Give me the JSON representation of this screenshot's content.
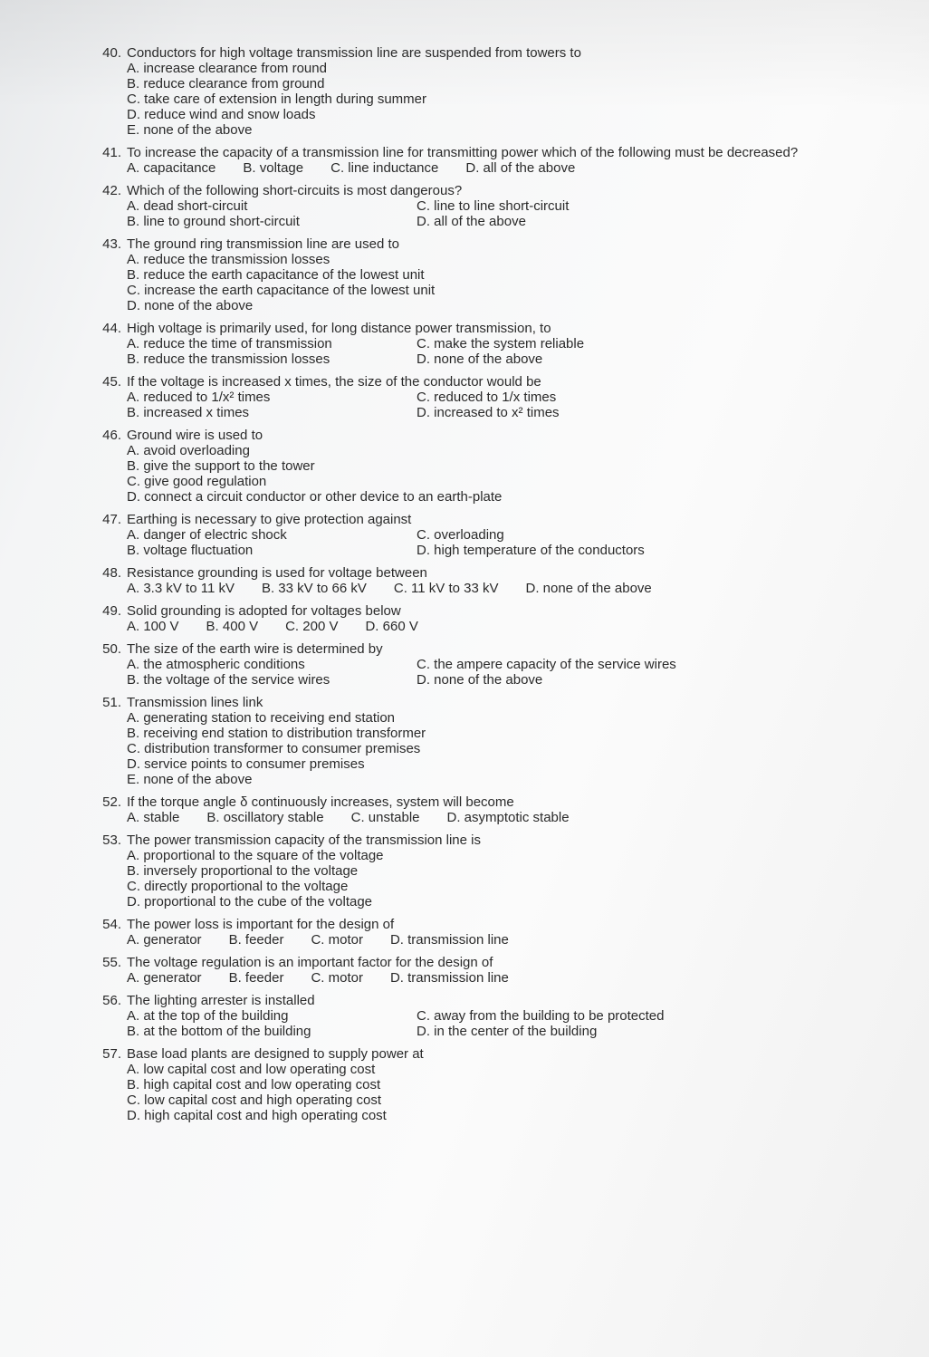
{
  "questions": [
    {
      "num": "40.",
      "stem": "Conductors for high voltage transmission line are suspended from towers to",
      "opts": [
        "A. increase clearance from round",
        "B. reduce clearance from ground",
        "C. take care of extension in length during summer",
        "D. reduce wind and snow loads",
        "E. none of the above"
      ],
      "layout": "block"
    },
    {
      "num": "41.",
      "stem": "To increase the capacity of a transmission line for transmitting power which of the following must be decreased?",
      "opts": [
        "A. capacitance",
        "B. voltage",
        "C. line inductance",
        "D. all of the above"
      ],
      "layout": "inline"
    },
    {
      "num": "42.",
      "stem": "Which of the following short-circuits is most dangerous?",
      "opts": [
        "A. dead short-circuit",
        "C. line to line short-circuit",
        "B. line to ground short-circuit",
        "D. all of the above"
      ],
      "layout": "two-col"
    },
    {
      "num": "43.",
      "stem": "The ground ring transmission line are used to",
      "opts": [
        "A. reduce the transmission losses",
        "B. reduce the earth capacitance of the lowest unit",
        "C. increase the earth capacitance of the lowest unit",
        "D. none of the above"
      ],
      "layout": "block"
    },
    {
      "num": "44.",
      "stem": "High voltage is primarily used, for long distance power transmission, to",
      "opts": [
        "A. reduce the time of transmission",
        "C. make the system reliable",
        "B. reduce the transmission losses",
        "D. none of the above"
      ],
      "layout": "two-col"
    },
    {
      "num": "45.",
      "stem": "If the voltage is increased x times, the size of the conductor would be",
      "opts": [
        "A. reduced to 1/x² times",
        "C. reduced to 1/x times",
        "B. increased x times",
        "D. increased to x² times"
      ],
      "layout": "two-col"
    },
    {
      "num": "46.",
      "stem": "Ground wire is used to",
      "opts": [
        "A. avoid overloading",
        "B. give the support to the tower",
        "C. give good regulation",
        "D. connect a circuit conductor or other device to an earth-plate"
      ],
      "layout": "block"
    },
    {
      "num": "47.",
      "stem": "Earthing is necessary to give protection against",
      "opts": [
        "A. danger of electric shock",
        "C. overloading",
        "B. voltage fluctuation",
        "D. high temperature of the conductors"
      ],
      "layout": "two-col"
    },
    {
      "num": "48.",
      "stem": "Resistance grounding is used for voltage between",
      "opts": [
        "A. 3.3 kV to 11 kV",
        "B. 33 kV to 66 kV",
        "C. 11 kV to 33 kV",
        "D. none of the above"
      ],
      "layout": "inline"
    },
    {
      "num": "49.",
      "stem": "Solid grounding is adopted for voltages below",
      "opts": [
        "A. 100 V",
        "B. 400 V",
        "C. 200 V",
        "D. 660 V"
      ],
      "layout": "inline"
    },
    {
      "num": "50.",
      "stem": "The size of the earth wire is determined by",
      "opts": [
        "A. the atmospheric conditions",
        "C. the ampere capacity of the service wires",
        "B. the voltage of the service wires",
        "D. none of the above"
      ],
      "layout": "two-col"
    },
    {
      "num": "51.",
      "stem": "Transmission lines link",
      "opts": [
        "A. generating station to receiving end station",
        "B. receiving end station to distribution transformer",
        "C. distribution transformer to consumer premises",
        "D. service points to consumer premises",
        "E. none of the above"
      ],
      "layout": "block"
    },
    {
      "num": "52.",
      "stem": "If the torque angle δ continuously increases, system will become",
      "opts": [
        "A. stable",
        "B. oscillatory stable",
        "C. unstable",
        "D. asymptotic stable"
      ],
      "layout": "inline"
    },
    {
      "num": "53.",
      "stem": "The power transmission capacity of the transmission line is",
      "opts": [
        "A. proportional to the square of the voltage",
        "B. inversely proportional to the voltage",
        "C. directly proportional to the voltage",
        "D. proportional to the cube of the voltage"
      ],
      "layout": "block"
    },
    {
      "num": "54.",
      "stem": "The power loss is important for the design of",
      "opts": [
        "A. generator",
        "B. feeder",
        "C. motor",
        "D. transmission line"
      ],
      "layout": "inline"
    },
    {
      "num": "55.",
      "stem": "The voltage regulation is an important factor for the design of",
      "opts": [
        "A. generator",
        "B. feeder",
        "C. motor",
        "D. transmission line"
      ],
      "layout": "inline"
    },
    {
      "num": "56.",
      "stem": "The lighting arrester is installed",
      "opts": [
        "A. at the top of the building",
        "C. away from the building to be protected",
        "B. at the bottom of the building",
        "D. in the center of the building"
      ],
      "layout": "two-col"
    },
    {
      "num": "57.",
      "stem": "Base load plants are designed to supply power at",
      "opts": [
        "A. low capital cost and low operating cost",
        "B. high capital cost and low operating cost",
        "C. low capital cost and high operating cost",
        "D. high capital cost and high operating cost"
      ],
      "layout": "block"
    }
  ]
}
